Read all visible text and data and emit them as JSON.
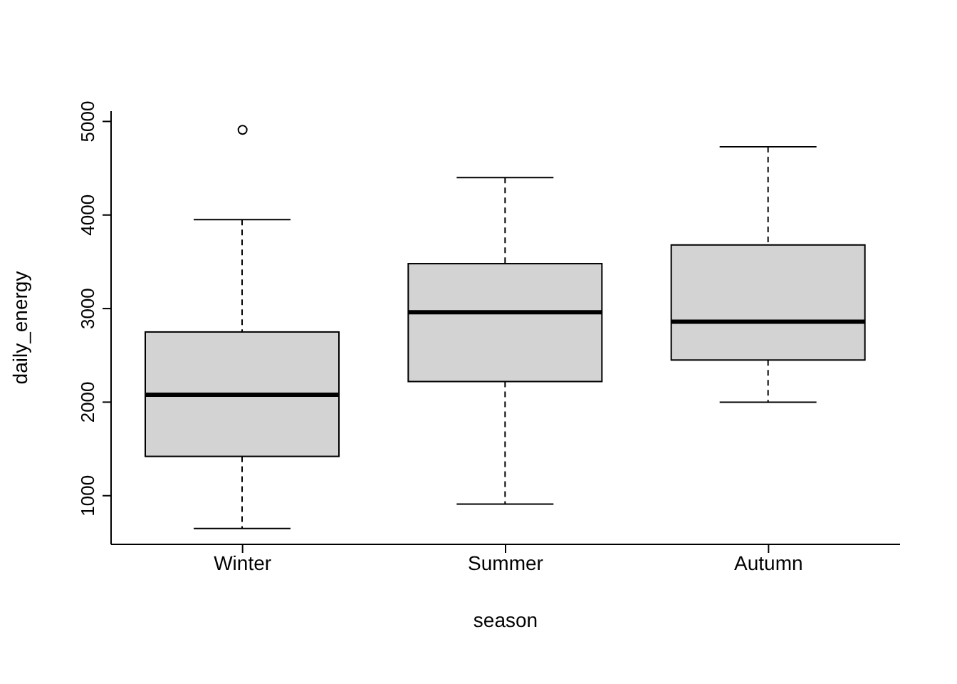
{
  "chart_data": {
    "type": "box",
    "xlabel": "season",
    "ylabel": "daily_energy",
    "categories": [
      "Winter",
      "Summer",
      "Autumn"
    ],
    "boxes": [
      {
        "low": 650,
        "q1": 1420,
        "median": 2080,
        "q3": 2750,
        "high": 3950,
        "outliers": [
          4910
        ]
      },
      {
        "low": 910,
        "q1": 2220,
        "median": 2960,
        "q3": 3480,
        "high": 4400
      },
      {
        "low": 2000,
        "q1": 2450,
        "median": 2860,
        "q3": 3680,
        "high": 4730
      }
    ],
    "color": "#d3d3d3",
    "ylim": [
      480,
      5110
    ],
    "yticks": [
      1000,
      2000,
      3000,
      4000,
      5000
    ],
    "grid": false,
    "legend": false
  }
}
